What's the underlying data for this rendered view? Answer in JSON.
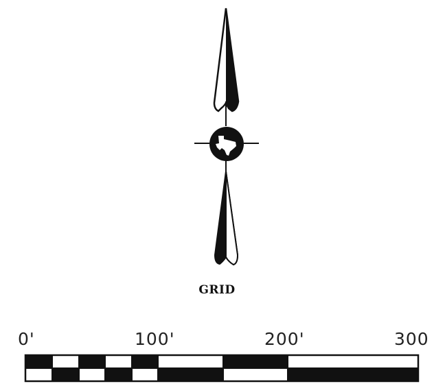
{
  "north_arrow": {
    "icon": "north-arrow-texas-icon",
    "label": "GRID"
  },
  "scale_bar": {
    "units": "feet",
    "ticks": [
      "0'",
      "100'",
      "200'",
      "300"
    ],
    "colors": {
      "ink": "#111111",
      "fill": "#ffffff"
    }
  }
}
